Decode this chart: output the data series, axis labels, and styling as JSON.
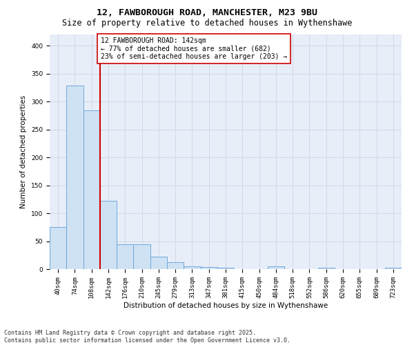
{
  "title_line1": "12, FAWBOROUGH ROAD, MANCHESTER, M23 9BU",
  "title_line2": "Size of property relative to detached houses in Wythenshawe",
  "xlabel": "Distribution of detached houses by size in Wythenshawe",
  "ylabel": "Number of detached properties",
  "bar_labels": [
    "40sqm",
    "74sqm",
    "108sqm",
    "142sqm",
    "176sqm",
    "210sqm",
    "245sqm",
    "279sqm",
    "313sqm",
    "347sqm",
    "381sqm",
    "415sqm",
    "450sqm",
    "484sqm",
    "518sqm",
    "552sqm",
    "586sqm",
    "620sqm",
    "655sqm",
    "689sqm",
    "723sqm"
  ],
  "bar_values": [
    75,
    328,
    284,
    122,
    44,
    44,
    22,
    12,
    5,
    4,
    3,
    0,
    0,
    5,
    0,
    0,
    3,
    0,
    0,
    0,
    3
  ],
  "bar_color": "#cfe2f3",
  "bar_edge_color": "#6fa8dc",
  "red_line_index": 3,
  "red_line_color": "#cc0000",
  "annotation_text": "12 FAWBOROUGH ROAD: 142sqm\n← 77% of detached houses are smaller (682)\n23% of semi-detached houses are larger (203) →",
  "annotation_box_color": "#ffffff",
  "annotation_box_edge": "#cc0000",
  "ylim": [
    0,
    420
  ],
  "yticks": [
    0,
    50,
    100,
    150,
    200,
    250,
    300,
    350,
    400
  ],
  "grid_color": "#d0d8e8",
  "bg_color": "#e8eef8",
  "footer_line1": "Contains HM Land Registry data © Crown copyright and database right 2025.",
  "footer_line2": "Contains public sector information licensed under the Open Government Licence v3.0.",
  "title_fontsize": 9.5,
  "subtitle_fontsize": 8.5,
  "axis_label_fontsize": 7.5,
  "tick_fontsize": 6.5,
  "annotation_fontsize": 7,
  "footer_fontsize": 6
}
